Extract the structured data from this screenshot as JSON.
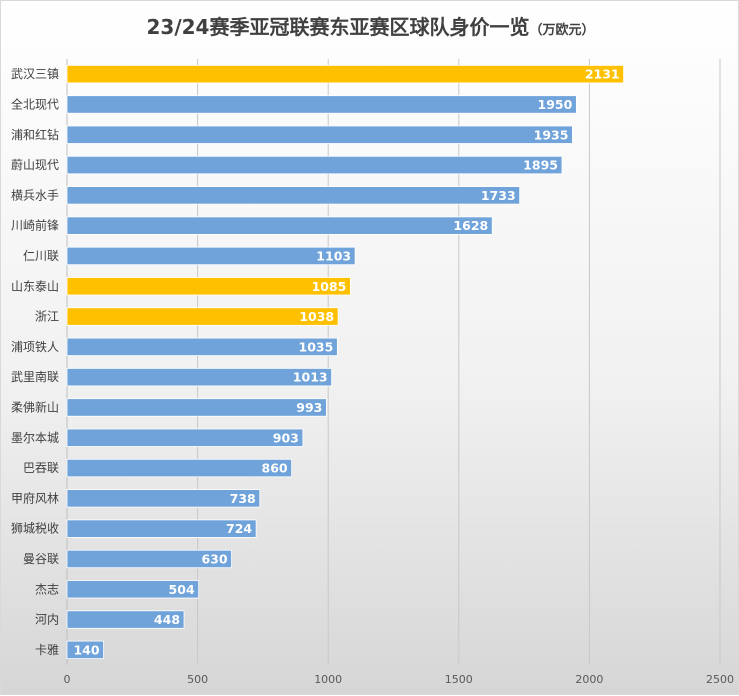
{
  "chart_data": {
    "type": "bar",
    "orientation": "horizontal",
    "title": "23/24赛季亚冠联赛东亚赛区球队身价一览",
    "subtitle": "（万欧元）",
    "categories": [
      "武汉三镇",
      "全北现代",
      "浦和红钻",
      "蔚山现代",
      "横兵水手",
      "川崎前锋",
      "仁川联",
      "山东泰山",
      "浙江",
      "浦项铁人",
      "武里南联",
      "柔佛新山",
      "墨尔本城",
      "巴吞联",
      "甲府风林",
      "狮城税收",
      "曼谷联",
      "杰志",
      "河内",
      "卡雅"
    ],
    "values": [
      2131,
      1950,
      1935,
      1895,
      1733,
      1628,
      1103,
      1085,
      1038,
      1035,
      1013,
      993,
      903,
      860,
      738,
      724,
      630,
      504,
      448,
      140
    ],
    "highlighted": [
      "武汉三镇",
      "山东泰山",
      "浙江"
    ],
    "xlim": [
      0,
      2500
    ],
    "xticks": [
      "0",
      "500",
      "1000",
      "1500",
      "2000",
      "2500"
    ],
    "xtick_values": [
      0,
      500,
      1000,
      1500,
      2000,
      2500
    ],
    "grid": true,
    "legend": "none",
    "xlabel": "",
    "ylabel": ""
  },
  "colors": {
    "bar_default": "#6fa3da",
    "bar_highlight": "#ffc000",
    "gridline": "#c8c8c8",
    "axis": "#bfbfbf",
    "text": "#404040"
  }
}
